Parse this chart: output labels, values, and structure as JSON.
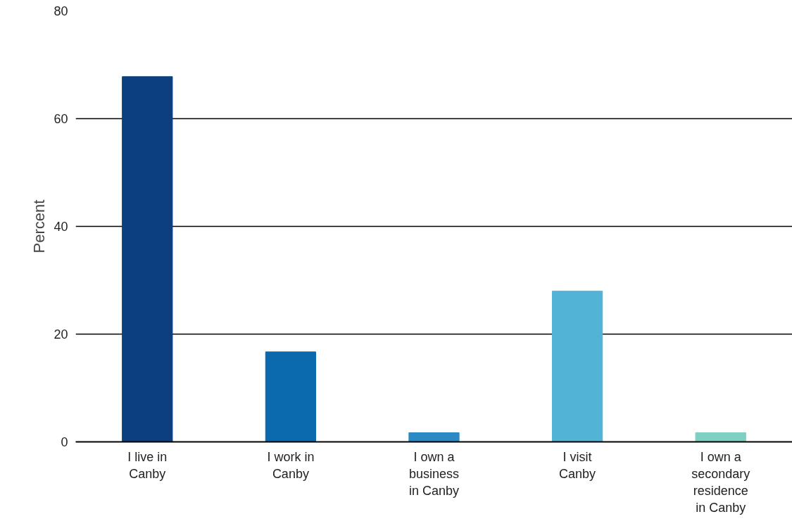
{
  "chart_data": {
    "type": "bar",
    "ylabel": "Percent",
    "categories": [
      "I live in Canby",
      "I work in Canby",
      "I own a business in Canby",
      "I visit Canby",
      "I own a secondary residence in Canby"
    ],
    "values": [
      67.8,
      16.7,
      1.7,
      28.0,
      1.7
    ],
    "colors": [
      "#0b3f7d",
      "#0a6aad",
      "#2b8ac3",
      "#52b3d6",
      "#7ecfc4"
    ],
    "ylim": [
      0,
      80
    ],
    "yticks": [
      0,
      20,
      40,
      60,
      80
    ],
    "grid": "y"
  }
}
